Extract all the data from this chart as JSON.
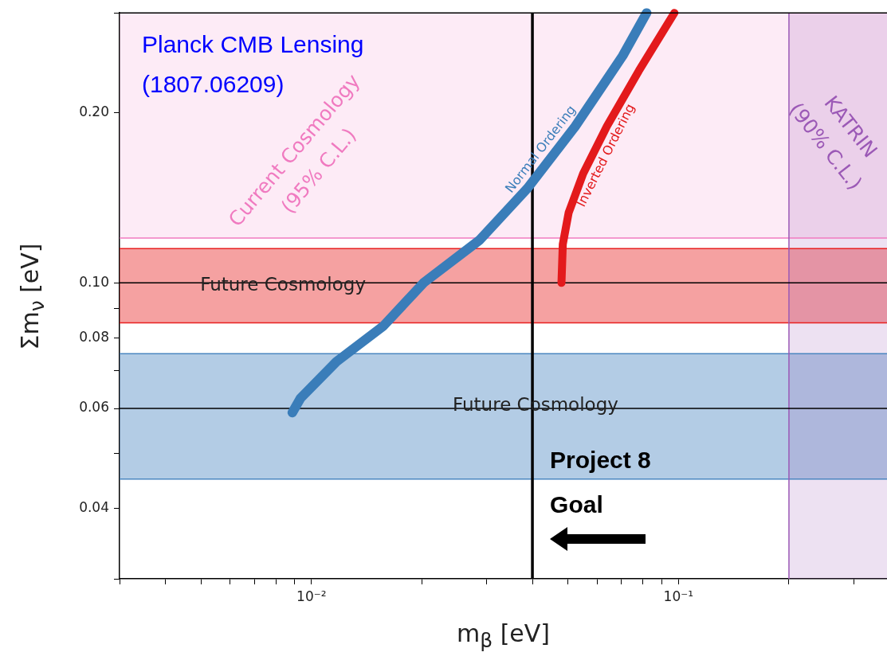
{
  "chart_data": {
    "type": "line",
    "xlabel": "m$_{β}$ [eV]",
    "ylabel": "Σm$_{ν}$ [eV]",
    "log": "xy",
    "grid": false,
    "legend": false,
    "marker": "none",
    "line_style": "solid",
    "xlim": [
      0.003,
      0.37
    ],
    "ylim": [
      0.03,
      0.3
    ],
    "xticks": [
      {
        "value": 0.003,
        "label": null
      },
      {
        "value": 0.004,
        "label": null
      },
      {
        "value": 0.005,
        "label": null
      },
      {
        "value": 0.006,
        "label": null
      },
      {
        "value": 0.007,
        "label": null
      },
      {
        "value": 0.008,
        "label": null
      },
      {
        "value": 0.009,
        "label": null
      },
      {
        "value": 0.01,
        "label": "10⁻²"
      },
      {
        "value": 0.02,
        "label": null
      },
      {
        "value": 0.03,
        "label": null
      },
      {
        "value": 0.04,
        "label": null
      },
      {
        "value": 0.05,
        "label": null
      },
      {
        "value": 0.06,
        "label": null
      },
      {
        "value": 0.07,
        "label": null
      },
      {
        "value": 0.08,
        "label": null
      },
      {
        "value": 0.09,
        "label": null
      },
      {
        "value": 0.1,
        "label": "10⁻¹"
      },
      {
        "value": 0.2,
        "label": null
      },
      {
        "value": 0.3,
        "label": null
      }
    ],
    "yticks": [
      {
        "value": 0.03,
        "label": null
      },
      {
        "value": 0.04,
        "label": "0.04"
      },
      {
        "value": 0.05,
        "label": null
      },
      {
        "value": 0.06,
        "label": "0.06"
      },
      {
        "value": 0.07,
        "label": null
      },
      {
        "value": 0.08,
        "label": "0.08"
      },
      {
        "value": 0.09,
        "label": null
      },
      {
        "value": 0.1,
        "label": "0.10"
      },
      {
        "value": 0.2,
        "label": "0.20"
      },
      {
        "value": 0.3,
        "label": null
      }
    ],
    "series": [
      {
        "name": "Normal Ordering",
        "color": "#3a7db9",
        "x": [
          0.00887,
          0.00933,
          0.0117,
          0.0157,
          0.0202,
          0.0287,
          0.0388,
          0.0523,
          0.0705,
          0.0819
        ],
        "values": [
          0.059,
          0.0625,
          0.0726,
          0.0839,
          0.1,
          0.119,
          0.147,
          0.189,
          0.252,
          0.3
        ]
      },
      {
        "name": "Inverted Ordering",
        "color": "#e31a1c",
        "x": [
          0.048,
          0.0484,
          0.0502,
          0.055,
          0.0638,
          0.078,
          0.0975
        ],
        "values": [
          0.1,
          0.117,
          0.133,
          0.156,
          0.189,
          0.237,
          0.3
        ]
      }
    ],
    "bands": [
      {
        "axis": "y",
        "from": 0.12,
        "to": 0.3,
        "color": "#f07ac0",
        "label": "Current Cosmology\n(95% C.L.)"
      },
      {
        "axis": "y",
        "from": 0.085,
        "to": 0.115,
        "color": "#e82020",
        "label": "Future Cosmology"
      },
      {
        "axis": "y",
        "from": 0.045,
        "to": 0.075,
        "color": "#4a86c0",
        "label": "Future Cosmology"
      },
      {
        "axis": "x",
        "from": 0.2,
        "to": 0.37,
        "color": "#9b59b6",
        "label": "KATRIN\n(90% C.L.)"
      }
    ],
    "ref_lines": [
      {
        "axis": "y",
        "value": 0.12,
        "color": "#f07ac0"
      },
      {
        "axis": "y",
        "value": 0.115,
        "color": "#e82020"
      },
      {
        "axis": "y",
        "value": 0.085,
        "color": "#e82020"
      },
      {
        "axis": "y",
        "value": 0.075,
        "color": "#4a86c0"
      },
      {
        "axis": "y",
        "value": 0.045,
        "color": "#4a86c0"
      },
      {
        "axis": "x",
        "value": 0.2,
        "color": "#9b59b6"
      },
      {
        "axis": "y",
        "value": 0.1,
        "color": "#000000"
      },
      {
        "axis": "y",
        "value": 0.06,
        "color": "#000000"
      },
      {
        "axis": "x",
        "value": 0.04,
        "color": "#000000"
      }
    ],
    "annotations": [
      "Planck CMB Lensing\n(1807.06209)",
      {
        "text": "Project 8\nGoal",
        "x": 0.04,
        "y": 0.045
      }
    ]
  }
}
